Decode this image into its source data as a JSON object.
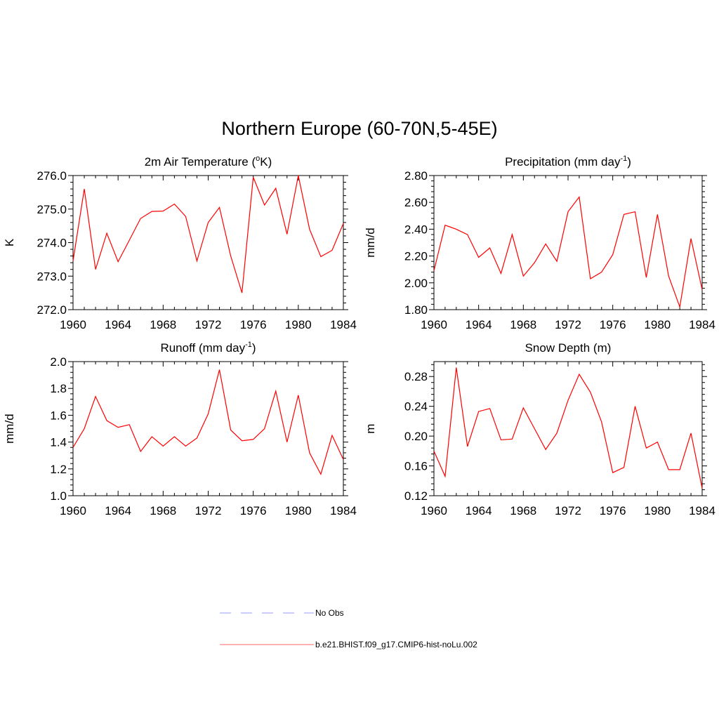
{
  "title": "Northern Europe (60-70N,5-45E)",
  "legend": [
    {
      "label": "No Obs",
      "color": "#9999ff",
      "style": "dashed"
    },
    {
      "label": "b.e21.BHIST.f09_g17.CMIP6-hist-noLu.002",
      "color": "#ff6666",
      "style": "solid"
    }
  ],
  "chart_data": [
    {
      "type": "line",
      "title": "2m Air Temperature (",
      "title_sup": "o",
      "title_suffix": "K)",
      "ylabel": "K",
      "xlim": [
        1960,
        1984
      ],
      "ylim": [
        272.0,
        276.0
      ],
      "xticks": [
        1960,
        1964,
        1968,
        1972,
        1976,
        1980,
        1984
      ],
      "yticks": [
        272.0,
        273.0,
        274.0,
        275.0,
        276.0
      ],
      "ytick_decimals": 1,
      "x": [
        1960,
        1961,
        1962,
        1963,
        1964,
        1965,
        1966,
        1967,
        1968,
        1969,
        1970,
        1971,
        1972,
        1973,
        1974,
        1975,
        1976,
        1977,
        1978,
        1979,
        1980,
        1981,
        1982,
        1983,
        1984
      ],
      "series": [
        {
          "values": [
            273.45,
            275.6,
            273.2,
            274.28,
            273.43,
            274.07,
            274.72,
            274.93,
            274.94,
            275.15,
            274.78,
            273.45,
            274.6,
            275.05,
            273.6,
            272.5,
            275.95,
            275.12,
            275.62,
            274.25,
            276.0,
            274.4,
            273.58,
            273.77,
            274.57
          ],
          "color": "#ff0000"
        }
      ]
    },
    {
      "type": "line",
      "title": "Precipitation (mm day",
      "title_sup": "-1",
      "title_suffix": ")",
      "ylabel": "mm/d",
      "xlim": [
        1960,
        1984
      ],
      "ylim": [
        1.8,
        2.8
      ],
      "xticks": [
        1960,
        1964,
        1968,
        1972,
        1976,
        1980,
        1984
      ],
      "yticks": [
        1.8,
        2.0,
        2.2,
        2.4,
        2.6,
        2.8
      ],
      "ytick_decimals": 2,
      "x": [
        1960,
        1961,
        1962,
        1963,
        1964,
        1965,
        1966,
        1967,
        1968,
        1969,
        1970,
        1971,
        1972,
        1973,
        1974,
        1975,
        1976,
        1977,
        1978,
        1979,
        1980,
        1981,
        1982,
        1983,
        1984
      ],
      "series": [
        {
          "values": [
            2.09,
            2.43,
            2.4,
            2.36,
            2.19,
            2.26,
            2.07,
            2.36,
            2.05,
            2.15,
            2.29,
            2.16,
            2.53,
            2.64,
            2.03,
            2.08,
            2.21,
            2.51,
            2.53,
            2.04,
            2.51,
            2.05,
            1.82,
            2.33,
            1.95
          ],
          "color": "#ff0000"
        }
      ]
    },
    {
      "type": "line",
      "title": "Runoff (mm day",
      "title_sup": "-1",
      "title_suffix": ")",
      "ylabel": "mm/d",
      "xlim": [
        1960,
        1984
      ],
      "ylim": [
        1.0,
        2.0
      ],
      "xticks": [
        1960,
        1964,
        1968,
        1972,
        1976,
        1980,
        1984
      ],
      "yticks": [
        1.0,
        1.2,
        1.4,
        1.6,
        1.8,
        2.0
      ],
      "ytick_decimals": 1,
      "x": [
        1960,
        1961,
        1962,
        1963,
        1964,
        1965,
        1966,
        1967,
        1968,
        1969,
        1970,
        1971,
        1972,
        1973,
        1974,
        1975,
        1976,
        1977,
        1978,
        1979,
        1980,
        1981,
        1982,
        1983,
        1984
      ],
      "series": [
        {
          "values": [
            1.36,
            1.5,
            1.74,
            1.56,
            1.51,
            1.53,
            1.33,
            1.44,
            1.37,
            1.44,
            1.37,
            1.43,
            1.61,
            1.94,
            1.49,
            1.41,
            1.42,
            1.5,
            1.78,
            1.4,
            1.75,
            1.32,
            1.16,
            1.45,
            1.27
          ],
          "color": "#ff0000"
        }
      ]
    },
    {
      "type": "line",
      "title": "Snow Depth (m)",
      "title_sup": "",
      "title_suffix": "",
      "ylabel": "m",
      "xlim": [
        1960,
        1984
      ],
      "ylim": [
        0.12,
        0.3
      ],
      "xticks": [
        1960,
        1964,
        1968,
        1972,
        1976,
        1980,
        1984
      ],
      "yticks": [
        0.12,
        0.16,
        0.2,
        0.24,
        0.28
      ],
      "ytick_decimals": 2,
      "x": [
        1960,
        1961,
        1962,
        1963,
        1964,
        1965,
        1966,
        1967,
        1968,
        1969,
        1970,
        1971,
        1972,
        1973,
        1974,
        1975,
        1976,
        1977,
        1978,
        1979,
        1980,
        1981,
        1982,
        1983,
        1984
      ],
      "series": [
        {
          "values": [
            0.18,
            0.146,
            0.292,
            0.186,
            0.233,
            0.237,
            0.195,
            0.196,
            0.238,
            0.21,
            0.182,
            0.204,
            0.248,
            0.283,
            0.259,
            0.219,
            0.151,
            0.158,
            0.24,
            0.184,
            0.192,
            0.155,
            0.155,
            0.204,
            0.13
          ],
          "color": "#ff0000"
        }
      ]
    }
  ]
}
